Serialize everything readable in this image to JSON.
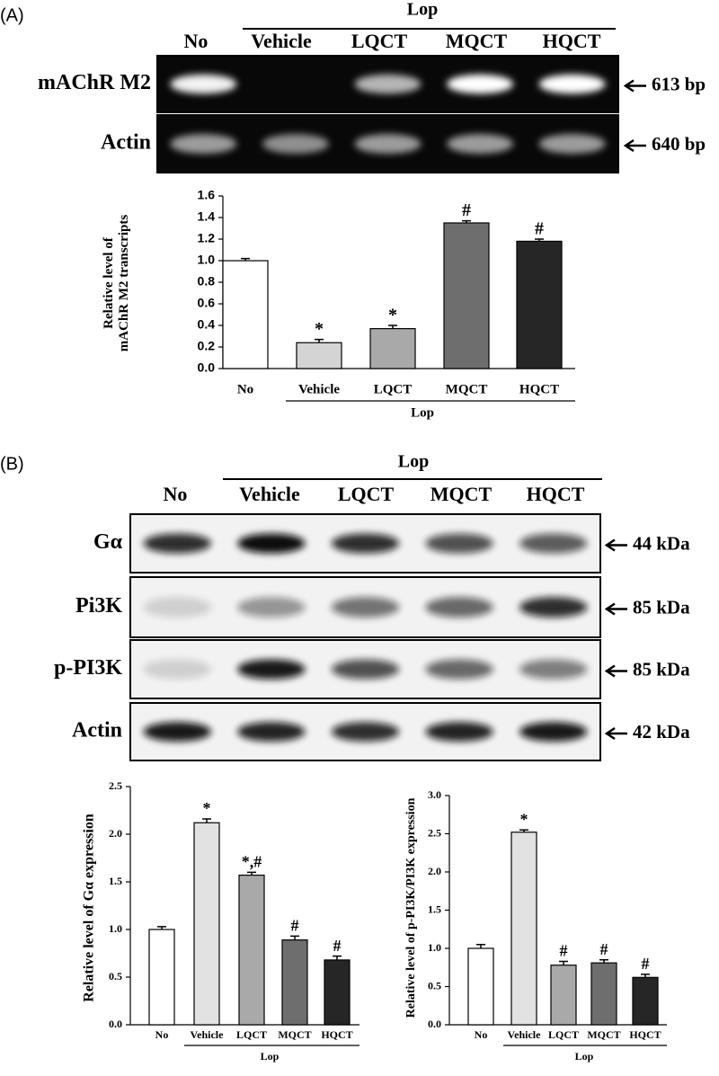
{
  "panels": [
    {
      "label": "(A)",
      "gel": {
        "group": "Lop",
        "lanes": [
          "No",
          "Vehicle",
          "LQCT",
          "MQCT",
          "HQCT"
        ],
        "rows": [
          {
            "name": "mAChR M2",
            "size": "613 bp"
          },
          {
            "name": "Actin",
            "size": "640 bp"
          }
        ]
      }
    },
    {
      "label": "(B)",
      "gel": {
        "group": "Lop",
        "lanes": [
          "No",
          "Vehicle",
          "LQCT",
          "MQCT",
          "HQCT"
        ],
        "rows": [
          {
            "name": "Gα",
            "size": "44 kDa"
          },
          {
            "name": "Pi3K",
            "size": "85 kDa"
          },
          {
            "name": "p-PI3K",
            "size": "85 kDa"
          },
          {
            "name": "Actin",
            "size": "42 kDa"
          }
        ]
      }
    }
  ],
  "chart_data": [
    {
      "type": "bar",
      "y_label": [
        "Relative level of",
        "mAChR M2 transcripts"
      ],
      "categories": [
        "No",
        "Vehicle",
        "LQCT",
        "MQCT",
        "HQCT"
      ],
      "group_label": "Lop",
      "values": [
        1.0,
        0.24,
        0.37,
        1.35,
        1.18
      ],
      "errors": [
        0.02,
        0.03,
        0.03,
        0.02,
        0.02
      ],
      "annotations": [
        null,
        "*",
        "*",
        "#",
        "#"
      ],
      "colors": [
        "#ffffff",
        "#d4d4d4",
        "#a9a9a9",
        "#6e6e6e",
        "#262626"
      ],
      "ylim": [
        0,
        1.6
      ],
      "yticks": [
        {
          "value": 0,
          "label": "0.0"
        },
        0.2,
        0.4,
        0.6,
        0.8,
        {
          "value": 1,
          "label": "1.0"
        },
        1.2,
        1.4,
        1.6
      ]
    },
    {
      "type": "bar",
      "y_label": [
        "Relative level of Gα expression"
      ],
      "categories": [
        "No",
        "Vehicle",
        "LQCT",
        "MQCT",
        "HQCT"
      ],
      "group_label": "Lop",
      "values": [
        1.0,
        2.12,
        1.57,
        0.89,
        0.68
      ],
      "errors": [
        0.03,
        0.04,
        0.03,
        0.04,
        0.04
      ],
      "annotations": [
        null,
        "*",
        "*,#",
        "#",
        "#"
      ],
      "colors": [
        "#ffffff",
        "#e2e2e2",
        "#a9a9a9",
        "#6e6e6e",
        "#262626"
      ],
      "ylim": [
        0,
        2.5
      ],
      "yticks": [
        {
          "value": 0,
          "label": "0.0"
        },
        0.5,
        {
          "value": 1,
          "label": "1.0"
        },
        1.5,
        {
          "value": 2,
          "label": "2.0"
        },
        2.5
      ]
    },
    {
      "type": "bar",
      "y_label": [
        "Relative level of p-PI3K/PI3K expression"
      ],
      "categories": [
        "No",
        "Vehicle",
        "LQCT",
        "MQCT",
        "HQCT"
      ],
      "group_label": "Lop",
      "values": [
        1.0,
        2.52,
        0.78,
        0.81,
        0.62
      ],
      "errors": [
        0.05,
        0.03,
        0.05,
        0.04,
        0.04
      ],
      "annotations": [
        null,
        "*",
        "#",
        "#",
        "#"
      ],
      "colors": [
        "#ffffff",
        "#e2e2e2",
        "#a9a9a9",
        "#6e6e6e",
        "#262626"
      ],
      "ylim": [
        0,
        3
      ],
      "yticks": [
        {
          "value": 0,
          "label": "0.0"
        },
        0.5,
        {
          "value": 1,
          "label": "1.0"
        },
        1.5,
        {
          "value": 2,
          "label": "2.0"
        },
        2.5,
        {
          "value": 3,
          "label": "3.0"
        }
      ]
    }
  ]
}
